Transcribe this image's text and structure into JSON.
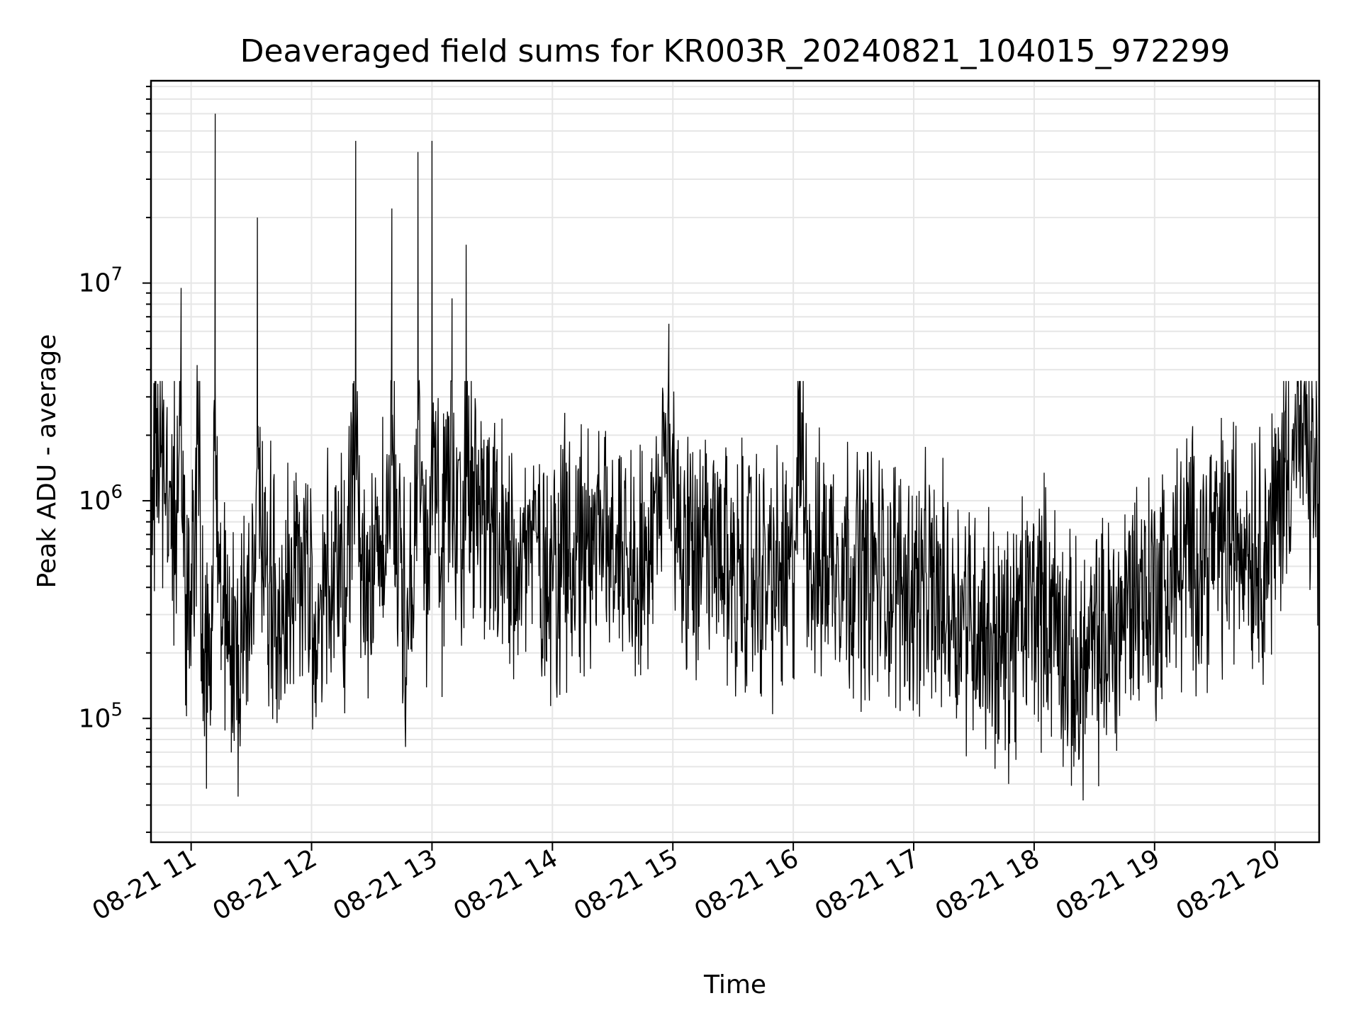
{
  "chart_data": {
    "type": "line",
    "title": "Deaveraged field sums for KR003R_20240821_104015_972299",
    "xlabel": "Time",
    "ylabel": "Peak ADU - average",
    "x_scale": "time",
    "y_scale": "log",
    "xlim": [
      "2024-08-21 10:40",
      "2024-08-21 20:22"
    ],
    "ylim": [
      27000,
      85000000
    ],
    "x_tick_labels": [
      "08-21 11",
      "08-21 12",
      "08-21 13",
      "08-21 14",
      "08-21 15",
      "08-21 16",
      "08-21 17",
      "08-21 18",
      "08-21 19",
      "08-21 20"
    ],
    "x_ticks": [
      "2024-08-21 11:00",
      "2024-08-21 12:00",
      "2024-08-21 13:00",
      "2024-08-21 14:00",
      "2024-08-21 15:00",
      "2024-08-21 16:00",
      "2024-08-21 17:00",
      "2024-08-21 18:00",
      "2024-08-21 19:00",
      "2024-08-21 20:00"
    ],
    "y_tick_labels": [
      {
        "base": "10",
        "exp": "5",
        "value": 100000
      },
      {
        "base": "10",
        "exp": "6",
        "value": 1000000
      },
      {
        "base": "10",
        "exp": "7",
        "value": 10000000
      }
    ],
    "grid": true,
    "legend": "none",
    "line_color": "#000000",
    "grid_color": "#e6e6e6",
    "series": [
      {
        "x": [
          "2024-08-21 10:40",
          "2024-08-21 10:45",
          "2024-08-21 10:50",
          "2024-08-21 10:53",
          "2024-08-21 10:55",
          "2024-08-21 10:57",
          "2024-08-21 11:00",
          "2024-08-21 11:03",
          "2024-08-21 11:07",
          "2024-08-21 11:10",
          "2024-08-21 11:12",
          "2024-08-21 11:15",
          "2024-08-21 11:20",
          "2024-08-21 11:25",
          "2024-08-21 11:30",
          "2024-08-21 11:33",
          "2024-08-21 11:37",
          "2024-08-21 11:40",
          "2024-08-21 11:45",
          "2024-08-21 11:50",
          "2024-08-21 11:57",
          "2024-08-21 12:03",
          "2024-08-21 12:10",
          "2024-08-21 12:17",
          "2024-08-21 12:22",
          "2024-08-21 12:27",
          "2024-08-21 12:33",
          "2024-08-21 12:37",
          "2024-08-21 12:40",
          "2024-08-21 12:45",
          "2024-08-21 12:50",
          "2024-08-21 12:53",
          "2024-08-21 12:58",
          "2024-08-21 13:00",
          "2024-08-21 13:05",
          "2024-08-21 13:10",
          "2024-08-21 13:15",
          "2024-08-21 13:17",
          "2024-08-21 13:25",
          "2024-08-21 13:35",
          "2024-08-21 13:42",
          "2024-08-21 13:50",
          "2024-08-21 14:00",
          "2024-08-21 14:08",
          "2024-08-21 14:20",
          "2024-08-21 14:35",
          "2024-08-21 14:50",
          "2024-08-21 14:58",
          "2024-08-21 15:05",
          "2024-08-21 15:15",
          "2024-08-21 15:30",
          "2024-08-21 15:45",
          "2024-08-21 16:00",
          "2024-08-21 16:03",
          "2024-08-21 16:10",
          "2024-08-21 16:20",
          "2024-08-21 16:30",
          "2024-08-21 16:45",
          "2024-08-21 17:00",
          "2024-08-21 17:15",
          "2024-08-21 17:30",
          "2024-08-21 17:45",
          "2024-08-21 18:00",
          "2024-08-21 18:10",
          "2024-08-21 18:20",
          "2024-08-21 18:30",
          "2024-08-21 18:40",
          "2024-08-21 18:50",
          "2024-08-21 18:58",
          "2024-08-21 19:05",
          "2024-08-21 19:15",
          "2024-08-21 19:25",
          "2024-08-21 19:35",
          "2024-08-21 19:45",
          "2024-08-21 19:55",
          "2024-08-21 20:00",
          "2024-08-21 20:05",
          "2024-08-21 20:10",
          "2024-08-21 20:15",
          "2024-08-21 20:22"
        ],
        "y": [
          1500000,
          1800000,
          600000,
          1200000,
          9500000,
          400000,
          300000,
          4200000,
          200000,
          120000,
          60000000,
          250000,
          200000,
          200000,
          220000,
          20000000,
          400000,
          500000,
          200000,
          450000,
          600000,
          200000,
          500000,
          400000,
          45000000,
          300000,
          500000,
          700000,
          22000000,
          250000,
          400000,
          40000000,
          300000,
          45000000,
          500000,
          8500000,
          600000,
          15000000,
          700000,
          500000,
          600000,
          650000,
          500000,
          600000,
          700000,
          650000,
          500000,
          6500000,
          600000,
          550000,
          500000,
          450000,
          420000,
          3500000,
          450000,
          600000,
          500000,
          450000,
          400000,
          350000,
          300000,
          200000,
          350000,
          300000,
          150000,
          200000,
          250000,
          400000,
          380000,
          400000,
          550000,
          600000,
          650000,
          700000,
          600000,
          800000,
          1500000,
          2500000,
          1800000,
          1000000
        ]
      }
    ]
  }
}
